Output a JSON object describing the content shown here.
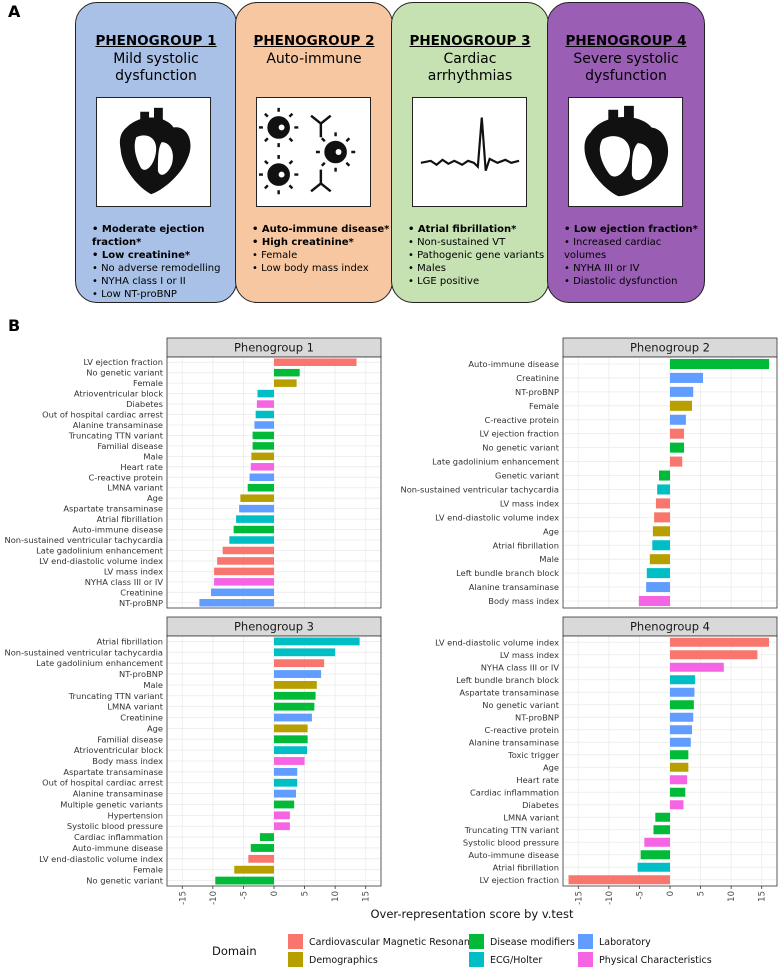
{
  "panel_a": {
    "label": "A",
    "groups": [
      {
        "title": "PHENOGROUP 1",
        "subtitle": "Mild systolic dysfunction",
        "color": "#a9c1e6",
        "bullets": [
          {
            "text": "Moderate ejection fraction*",
            "bold": true
          },
          {
            "text": "Low creatinine*",
            "bold": true
          },
          {
            "text": "No adverse remodelling"
          },
          {
            "text": "NYHA class I or II"
          },
          {
            "text": "Low NT-proBNP"
          }
        ]
      },
      {
        "title": "PHENOGROUP 2",
        "subtitle": "Auto-immune",
        "color": "#f7c7a2",
        "bullets": [
          {
            "text": "Auto-immune disease*",
            "bold": true
          },
          {
            "text": "High creatinine*",
            "bold": true
          },
          {
            "text": "Female"
          },
          {
            "text": "Low body mass index"
          }
        ]
      },
      {
        "title": "PHENOGROUP 3",
        "subtitle": "Cardiac arrhythmias",
        "color": "#c6e1b2",
        "bullets": [
          {
            "text": "Atrial fibrillation*",
            "bold": true
          },
          {
            "text": "Non-sustained VT"
          },
          {
            "text": "Pathogenic gene variants"
          },
          {
            "text": "Males"
          },
          {
            "text": "LGE positive"
          }
        ]
      },
      {
        "title": "PHENOGROUP 4",
        "subtitle": "Severe systolic dysfunction",
        "color": "#9a5fb5",
        "bullets": [
          {
            "text": "Low ejection fraction*",
            "bold": true
          },
          {
            "text": "Increased cardiac volumes"
          },
          {
            "text": "NYHA III or IV"
          },
          {
            "text": "Diastolic dysfunction"
          }
        ]
      }
    ]
  },
  "panel_b_label": "B",
  "x_label": "Over-representation score by v.test",
  "legend": {
    "title": "Domain",
    "items": [
      {
        "name": "Cardiovascular Magnetic Resonance",
        "color": "#f8766d"
      },
      {
        "name": "Demographics",
        "color": "#b79f00"
      },
      {
        "name": "Disease modifiers",
        "color": "#00ba38"
      },
      {
        "name": "ECG/Holter",
        "color": "#00bfc4"
      },
      {
        "name": "Laboratory",
        "color": "#619cff"
      },
      {
        "name": "Physical Characteristics",
        "color": "#f564e3"
      }
    ]
  },
  "chart_data": [
    {
      "type": "bar",
      "title": "Phenogroup 1",
      "xlim": [
        -17.5,
        17.5
      ],
      "xticks": [
        -15,
        -10,
        -5,
        0,
        5,
        10,
        15
      ],
      "grid": true,
      "categories": [
        "LV ejection fraction",
        "No genetic variant",
        "Female",
        "Atrioventricular block",
        "Diabetes",
        "Out of hospital cardiac arrest",
        "Alanine transaminase",
        "Truncating TTN variant",
        "Familial disease",
        "Male",
        "Heart rate",
        "C-reactive protein",
        "LMNA variant",
        "Age",
        "Aspartate transaminase",
        "Atrial fibrillation",
        "Auto-immune disease",
        "Non-sustained ventricular tachycardia",
        "Late gadolinium enhancement",
        "LV end-diastolic volume index",
        "LV mass index",
        "NYHA class III or IV",
        "Creatinine",
        "NT-proBNP"
      ],
      "values": [
        13.5,
        4.2,
        3.7,
        -2.7,
        -2.8,
        -3.0,
        -3.2,
        -3.5,
        -3.5,
        -3.7,
        -3.8,
        -4.0,
        -4.3,
        -5.5,
        -5.7,
        -6.2,
        -6.6,
        -7.3,
        -8.4,
        -9.3,
        -9.8,
        -9.8,
        -10.3,
        -12.2
      ],
      "colors": [
        "#f8766d",
        "#00ba38",
        "#b79f00",
        "#00bfc4",
        "#f564e3",
        "#00bfc4",
        "#619cff",
        "#00ba38",
        "#00ba38",
        "#b79f00",
        "#f564e3",
        "#619cff",
        "#00ba38",
        "#b79f00",
        "#619cff",
        "#00bfc4",
        "#00ba38",
        "#00bfc4",
        "#f8766d",
        "#f8766d",
        "#f8766d",
        "#f564e3",
        "#619cff",
        "#619cff"
      ]
    },
    {
      "type": "bar",
      "title": "Phenogroup 2",
      "xlim": [
        -17.5,
        17.5
      ],
      "xticks": [
        -15,
        -10,
        -5,
        0,
        5,
        10,
        15
      ],
      "grid": true,
      "categories": [
        "Auto-immune disease",
        "Creatinine",
        "NT-proBNP",
        "Female",
        "C-reactive protein",
        "LV ejection fraction",
        "No genetic variant",
        "Late gadolinium enhancement",
        "Genetic variant",
        "Non-sustained ventricular tachycardia",
        "LV mass index",
        "LV end-diastolic volume index",
        "Age",
        "Atrial fibrillation",
        "Male",
        "Left bundle branch block",
        "Alanine transaminase",
        "Body mass index"
      ],
      "values": [
        16.2,
        5.4,
        3.8,
        3.6,
        2.6,
        2.3,
        2.3,
        2.0,
        -1.8,
        -2.1,
        -2.3,
        -2.6,
        -2.8,
        -2.9,
        -3.3,
        -3.8,
        -3.9,
        -5.1
      ],
      "colors": [
        "#00ba38",
        "#619cff",
        "#619cff",
        "#b79f00",
        "#619cff",
        "#f8766d",
        "#00ba38",
        "#f8766d",
        "#00ba38",
        "#00bfc4",
        "#f8766d",
        "#f8766d",
        "#b79f00",
        "#00bfc4",
        "#b79f00",
        "#00bfc4",
        "#619cff",
        "#f564e3"
      ]
    },
    {
      "type": "bar",
      "title": "Phenogroup 3",
      "xlim": [
        -17.5,
        17.5
      ],
      "xticks": [
        -15,
        -10,
        -5,
        0,
        5,
        10,
        15
      ],
      "grid": true,
      "categories": [
        "Atrial fibrillation",
        "Non-sustained ventricular tachycardia",
        "Late gadolinium enhancement",
        "NT-proBNP",
        "Male",
        "Truncating TTN variant",
        "LMNA variant",
        "Creatinine",
        "Age",
        "Familial disease",
        "Atrioventricular block",
        "Body mass index",
        "Aspartate transaminase",
        "Out of hospital cardiac arrest",
        "Alanine transaminase",
        "Multiple genetic variants",
        "Hypertension",
        "Systolic blood pressure",
        "Cardiac inflammation",
        "Auto-immune disease",
        "LV end-diastolic volume index",
        "Female",
        "No genetic variant"
      ],
      "values": [
        14.0,
        10.0,
        8.2,
        7.7,
        7.0,
        6.8,
        6.6,
        6.2,
        5.5,
        5.5,
        5.4,
        5.0,
        3.8,
        3.8,
        3.6,
        3.3,
        2.6,
        2.6,
        -2.3,
        -3.8,
        -4.2,
        -6.5,
        -9.6
      ],
      "colors": [
        "#00bfc4",
        "#00bfc4",
        "#f8766d",
        "#619cff",
        "#b79f00",
        "#00ba38",
        "#00ba38",
        "#619cff",
        "#b79f00",
        "#00ba38",
        "#00bfc4",
        "#f564e3",
        "#619cff",
        "#00bfc4",
        "#619cff",
        "#00ba38",
        "#f564e3",
        "#f564e3",
        "#00ba38",
        "#00ba38",
        "#f8766d",
        "#b79f00",
        "#00ba38"
      ]
    },
    {
      "type": "bar",
      "title": "Phenogroup 4",
      "xlim": [
        -17.5,
        17.5
      ],
      "xticks": [
        -15,
        -10,
        -5,
        0,
        5,
        10,
        15
      ],
      "grid": true,
      "categories": [
        "LV end-diastolic volume index",
        "LV mass index",
        "NYHA class III or IV",
        "Left bundle branch block",
        "Aspartate transaminase",
        "No genetic variant",
        "NT-proBNP",
        "C-reactive protein",
        "Alanine transaminase",
        "Toxic trigger",
        "Age",
        "Heart rate",
        "Cardiac inflammation",
        "Diabetes",
        "LMNA variant",
        "Truncating TTN variant",
        "Systolic blood pressure",
        "Auto-immune disease",
        "Atrial fibrillation",
        "LV ejection fraction"
      ],
      "values": [
        16.2,
        14.3,
        8.8,
        4.1,
        4.0,
        3.9,
        3.8,
        3.6,
        3.4,
        3.0,
        3.0,
        2.8,
        2.5,
        2.2,
        -2.4,
        -2.7,
        -4.2,
        -4.8,
        -5.3,
        -16.6
      ],
      "colors": [
        "#f8766d",
        "#f8766d",
        "#f564e3",
        "#00bfc4",
        "#619cff",
        "#00ba38",
        "#619cff",
        "#619cff",
        "#619cff",
        "#00ba38",
        "#b79f00",
        "#f564e3",
        "#00ba38",
        "#f564e3",
        "#00ba38",
        "#00ba38",
        "#f564e3",
        "#00ba38",
        "#00bfc4",
        "#f8766d"
      ]
    }
  ]
}
